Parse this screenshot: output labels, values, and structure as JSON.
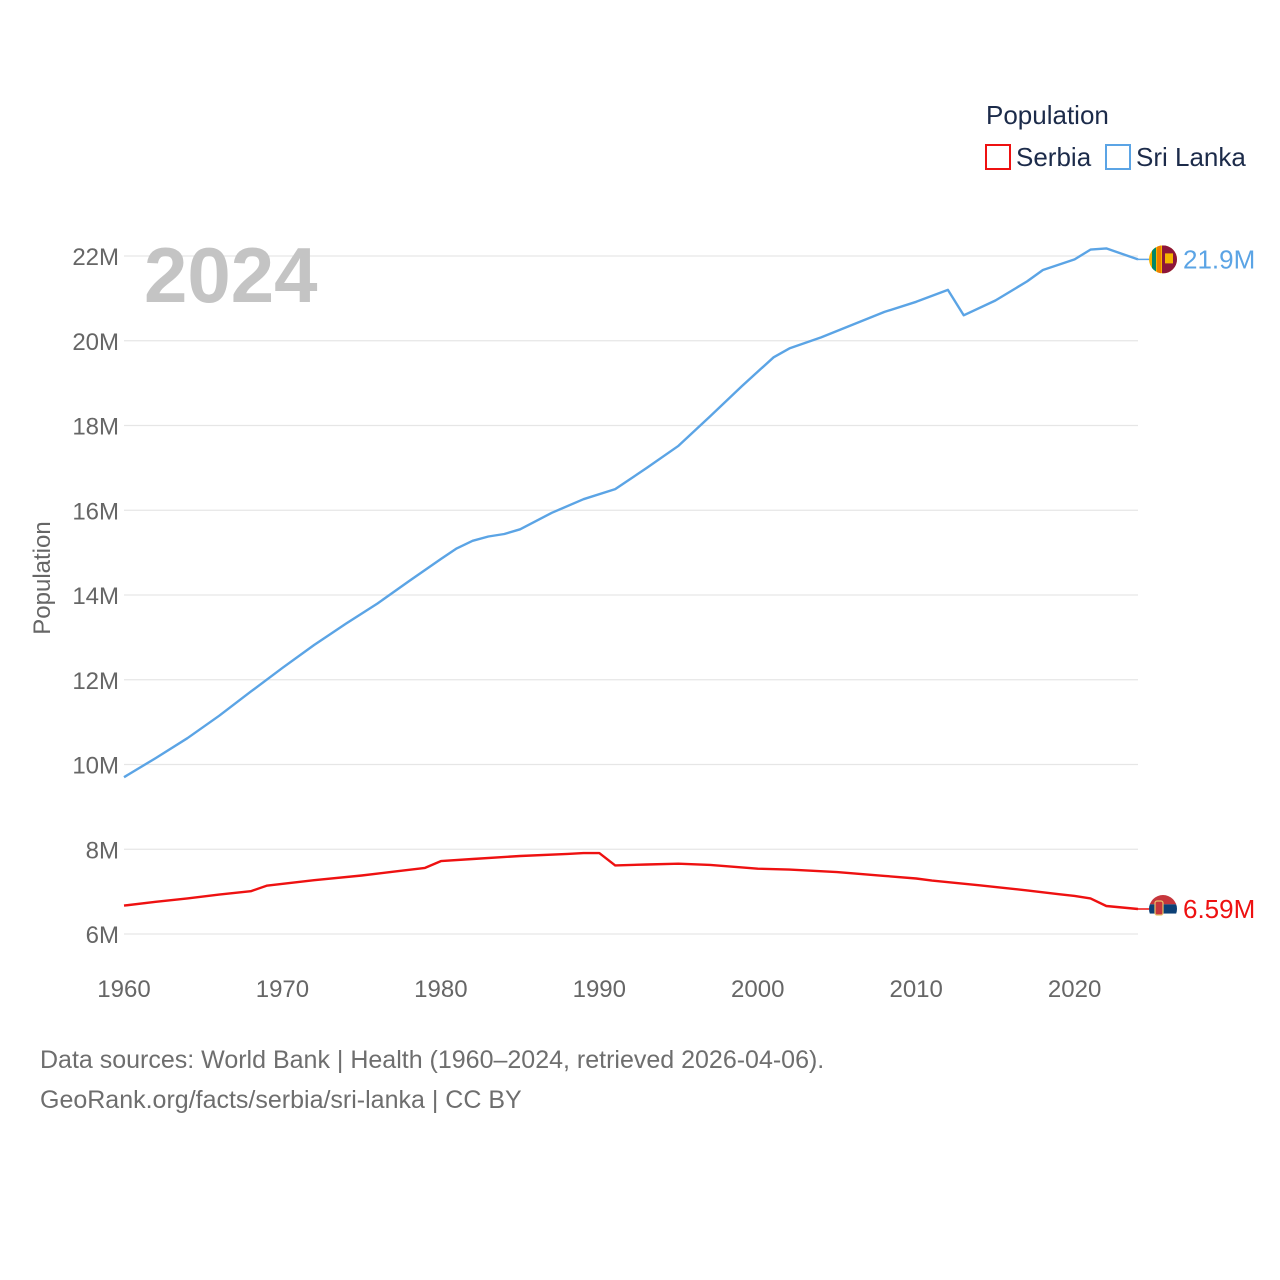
{
  "chart_data": {
    "type": "line",
    "title": "Population",
    "year_label": "2024",
    "ylabel": "Population",
    "xlim": [
      1960,
      2024
    ],
    "ylim": [
      6000000,
      22000000
    ],
    "x_ticks": [
      1960,
      1970,
      1980,
      1990,
      2000,
      2010,
      2020
    ],
    "y_ticks": [
      {
        "value": 6000000,
        "label": "6M"
      },
      {
        "value": 8000000,
        "label": "8M"
      },
      {
        "value": 10000000,
        "label": "10M"
      },
      {
        "value": 12000000,
        "label": "12M"
      },
      {
        "value": 14000000,
        "label": "14M"
      },
      {
        "value": 16000000,
        "label": "16M"
      },
      {
        "value": 18000000,
        "label": "18M"
      },
      {
        "value": 20000000,
        "label": "20M"
      },
      {
        "value": 22000000,
        "label": "22M"
      }
    ],
    "legend_position": "top-right",
    "series": [
      {
        "name": "Serbia",
        "color": "#ee1111",
        "end_label": "6.59M",
        "flag_icon": "serbia-flag-icon",
        "points": [
          [
            1960,
            6670000
          ],
          [
            1962,
            6760000
          ],
          [
            1964,
            6840000
          ],
          [
            1966,
            6930000
          ],
          [
            1968,
            7010000
          ],
          [
            1969,
            7140000
          ],
          [
            1972,
            7270000
          ],
          [
            1975,
            7380000
          ],
          [
            1977,
            7470000
          ],
          [
            1979,
            7560000
          ],
          [
            1980,
            7720000
          ],
          [
            1982,
            7770000
          ],
          [
            1985,
            7840000
          ],
          [
            1988,
            7890000
          ],
          [
            1989,
            7910000
          ],
          [
            1990,
            7910000
          ],
          [
            1991,
            7620000
          ],
          [
            1993,
            7640000
          ],
          [
            1995,
            7660000
          ],
          [
            1997,
            7630000
          ],
          [
            2000,
            7540000
          ],
          [
            2002,
            7520000
          ],
          [
            2005,
            7460000
          ],
          [
            2008,
            7370000
          ],
          [
            2010,
            7310000
          ],
          [
            2011,
            7260000
          ],
          [
            2014,
            7150000
          ],
          [
            2017,
            7030000
          ],
          [
            2019,
            6940000
          ],
          [
            2020,
            6900000
          ],
          [
            2021,
            6840000
          ],
          [
            2022,
            6660000
          ],
          [
            2024,
            6590000
          ]
        ]
      },
      {
        "name": "Sri Lanka",
        "color": "#5ba4e5",
        "end_label": "21.9M",
        "flag_icon": "sri-lanka-flag-icon",
        "points": [
          [
            1960,
            9700000
          ],
          [
            1962,
            10150000
          ],
          [
            1964,
            10620000
          ],
          [
            1966,
            11150000
          ],
          [
            1968,
            11720000
          ],
          [
            1970,
            12280000
          ],
          [
            1972,
            12820000
          ],
          [
            1974,
            13320000
          ],
          [
            1976,
            13800000
          ],
          [
            1978,
            14330000
          ],
          [
            1980,
            14850000
          ],
          [
            1981,
            15100000
          ],
          [
            1982,
            15280000
          ],
          [
            1983,
            15380000
          ],
          [
            1984,
            15440000
          ],
          [
            1985,
            15550000
          ],
          [
            1987,
            15940000
          ],
          [
            1989,
            16260000
          ],
          [
            1991,
            16500000
          ],
          [
            1993,
            17000000
          ],
          [
            1995,
            17520000
          ],
          [
            1997,
            18220000
          ],
          [
            1999,
            18930000
          ],
          [
            2001,
            19610000
          ],
          [
            2002,
            19820000
          ],
          [
            2004,
            20080000
          ],
          [
            2006,
            20380000
          ],
          [
            2008,
            20680000
          ],
          [
            2010,
            20920000
          ],
          [
            2012,
            21200000
          ],
          [
            2013,
            20600000
          ],
          [
            2015,
            20950000
          ],
          [
            2017,
            21400000
          ],
          [
            2018,
            21670000
          ],
          [
            2020,
            21920000
          ],
          [
            2021,
            22150000
          ],
          [
            2022,
            22180000
          ],
          [
            2024,
            21920000
          ]
        ]
      }
    ]
  },
  "footer": {
    "sources_line": "Data sources: World Bank | Health (1960–2024, retrieved 2026-04-06).",
    "credit_line": "GeoRank.org/facts/serbia/sri-lanka | CC BY"
  }
}
